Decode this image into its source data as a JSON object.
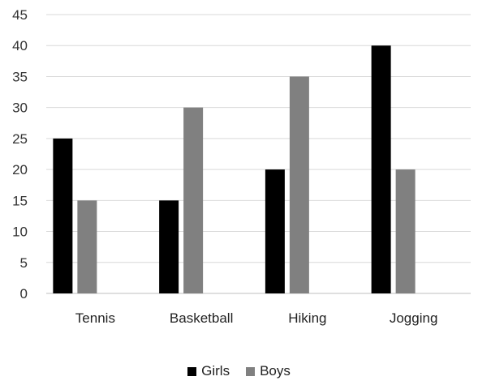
{
  "chart_data": {
    "type": "bar",
    "categories": [
      "Tennis",
      "Basketball",
      "Hiking",
      "Jogging"
    ],
    "series": [
      {
        "name": "Girls",
        "values": [
          25,
          15,
          20,
          40
        ],
        "color": "#000000"
      },
      {
        "name": "Boys",
        "values": [
          15,
          30,
          35,
          20
        ],
        "color": "#808080"
      }
    ],
    "yticks": [
      0,
      5,
      10,
      15,
      20,
      25,
      30,
      35,
      40,
      45
    ],
    "ylim": [
      0,
      45
    ],
    "grid": true,
    "legend_position": "bottom"
  }
}
